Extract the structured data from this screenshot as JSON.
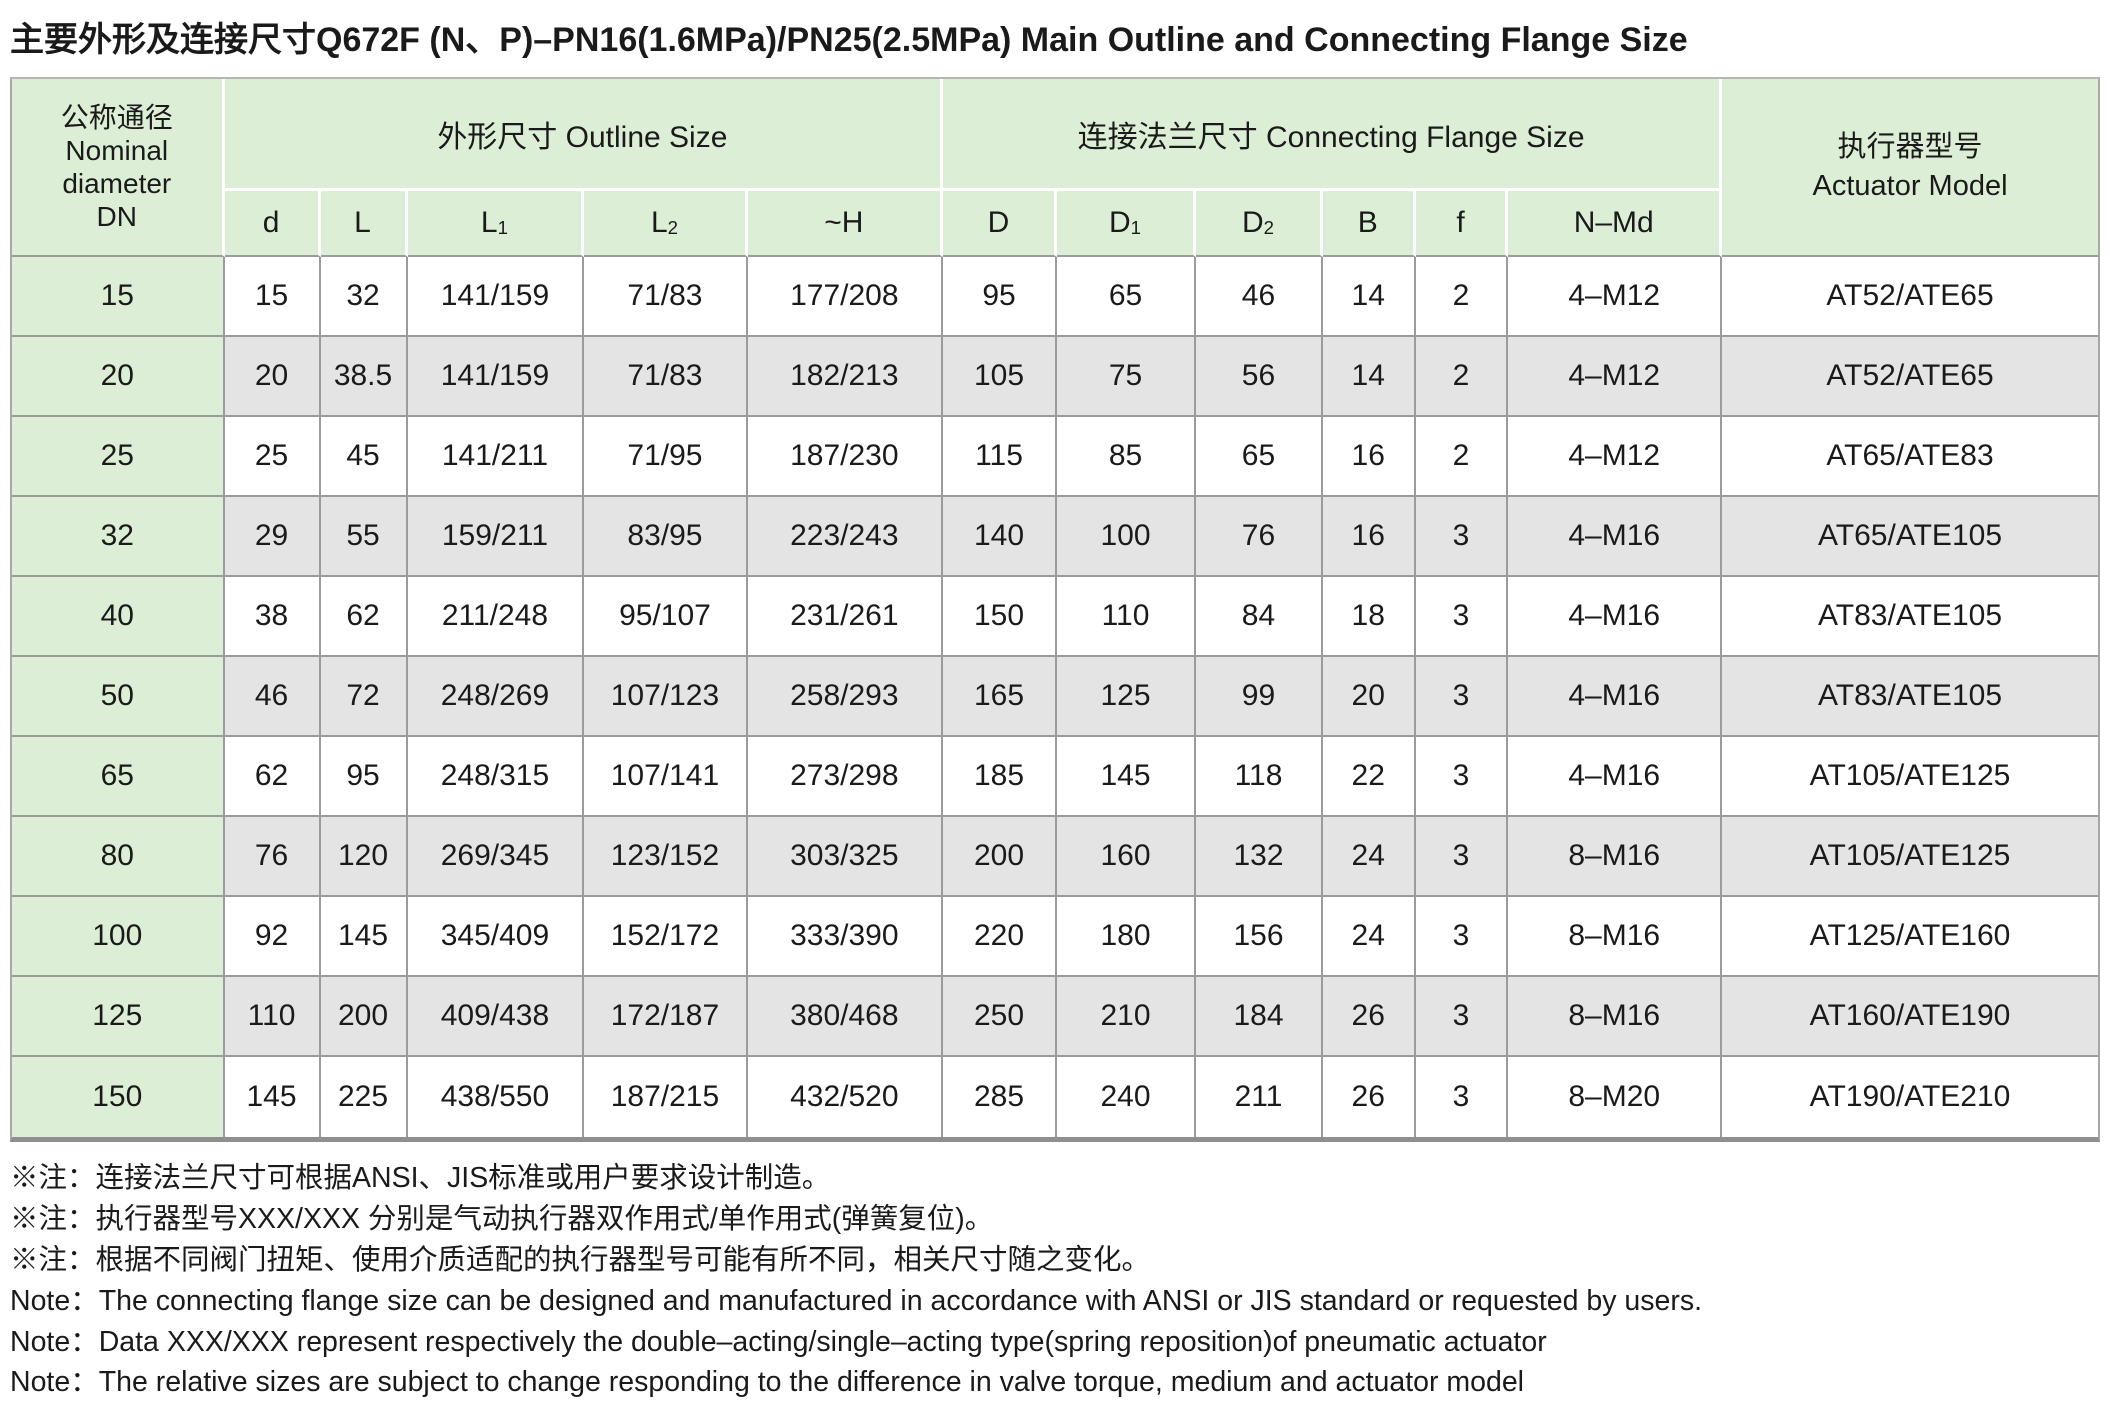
{
  "title": "主要外形及连接尺寸Q672F (N、P)–PN16(1.6MPa)/PN25(2.5MPa) Main Outline and Connecting Flange Size",
  "table": {
    "group_headers": {
      "dn": "公称通径\nNominal\ndiameter\nDN",
      "outline": "外形尺寸 Outline Size",
      "flange": "连接法兰尺寸 Connecting Flange Size",
      "actuator": "执行器型号\nActuator Model"
    },
    "columns": [
      {
        "key": "d",
        "label": "d",
        "sub": ""
      },
      {
        "key": "L",
        "label": "L",
        "sub": ""
      },
      {
        "key": "L1",
        "label": "L",
        "sub": "1"
      },
      {
        "key": "L2",
        "label": "L",
        "sub": "2"
      },
      {
        "key": "H",
        "label": "~H",
        "sub": ""
      },
      {
        "key": "D",
        "label": "D",
        "sub": ""
      },
      {
        "key": "D1",
        "label": "D",
        "sub": "1"
      },
      {
        "key": "D2",
        "label": "D",
        "sub": "2"
      },
      {
        "key": "B",
        "label": "B",
        "sub": ""
      },
      {
        "key": "f",
        "label": "f",
        "sub": ""
      },
      {
        "key": "NMd",
        "label": "N–Md",
        "sub": ""
      }
    ],
    "rows": [
      {
        "dn": "15",
        "values": [
          "15",
          "32",
          "141/159",
          "71/83",
          "177/208",
          "95",
          "65",
          "46",
          "14",
          "2",
          "4–M12"
        ],
        "actuator": "AT52/ATE65"
      },
      {
        "dn": "20",
        "values": [
          "20",
          "38.5",
          "141/159",
          "71/83",
          "182/213",
          "105",
          "75",
          "56",
          "14",
          "2",
          "4–M12"
        ],
        "actuator": "AT52/ATE65"
      },
      {
        "dn": "25",
        "values": [
          "25",
          "45",
          "141/211",
          "71/95",
          "187/230",
          "115",
          "85",
          "65",
          "16",
          "2",
          "4–M12"
        ],
        "actuator": "AT65/ATE83"
      },
      {
        "dn": "32",
        "values": [
          "29",
          "55",
          "159/211",
          "83/95",
          "223/243",
          "140",
          "100",
          "76",
          "16",
          "3",
          "4–M16"
        ],
        "actuator": "AT65/ATE105"
      },
      {
        "dn": "40",
        "values": [
          "38",
          "62",
          "211/248",
          "95/107",
          "231/261",
          "150",
          "110",
          "84",
          "18",
          "3",
          "4–M16"
        ],
        "actuator": "AT83/ATE105"
      },
      {
        "dn": "50",
        "values": [
          "46",
          "72",
          "248/269",
          "107/123",
          "258/293",
          "165",
          "125",
          "99",
          "20",
          "3",
          "4–M16"
        ],
        "actuator": "AT83/ATE105"
      },
      {
        "dn": "65",
        "values": [
          "62",
          "95",
          "248/315",
          "107/141",
          "273/298",
          "185",
          "145",
          "118",
          "22",
          "3",
          "4–M16"
        ],
        "actuator": "AT105/ATE125"
      },
      {
        "dn": "80",
        "values": [
          "76",
          "120",
          "269/345",
          "123/152",
          "303/325",
          "200",
          "160",
          "132",
          "24",
          "3",
          "8–M16"
        ],
        "actuator": "AT105/ATE125"
      },
      {
        "dn": "100",
        "values": [
          "92",
          "145",
          "345/409",
          "152/172",
          "333/390",
          "220",
          "180",
          "156",
          "24",
          "3",
          "8–M16"
        ],
        "actuator": "AT125/ATE160"
      },
      {
        "dn": "125",
        "values": [
          "110",
          "200",
          "409/438",
          "172/187",
          "380/468",
          "250",
          "210",
          "184",
          "26",
          "3",
          "8–M16"
        ],
        "actuator": "AT160/ATE190"
      },
      {
        "dn": "150",
        "values": [
          "145",
          "225",
          "438/550",
          "187/215",
          "432/520",
          "285",
          "240",
          "211",
          "26",
          "3",
          "8–M20"
        ],
        "actuator": "AT190/ATE210"
      }
    ]
  },
  "notes": [
    "※注：连接法兰尺寸可根据ANSI、JIS标准或用户要求设计制造。",
    "※注：执行器型号XXX/XXX 分别是气动执行器双作用式/单作用式(弹簧复位)。",
    "※注：根据不同阀门扭矩、使用介质适配的执行器型号可能有所不同，相关尺寸随之变化。",
    "Note：The connecting flange size can be designed and manufactured in accordance with ANSI or JIS standard or requested by users.",
    "Note：Data XXX/XXX represent respectively the double–acting/single–acting type(spring reposition)of pneumatic actuator",
    "Note：The relative sizes are subject to change responding to the difference in valve torque, medium and actuator model"
  ],
  "colors": {
    "header_green": "#dcefd6",
    "row_alt_gray": "#e4e4e4",
    "grid_gray": "#9b9b9b"
  }
}
